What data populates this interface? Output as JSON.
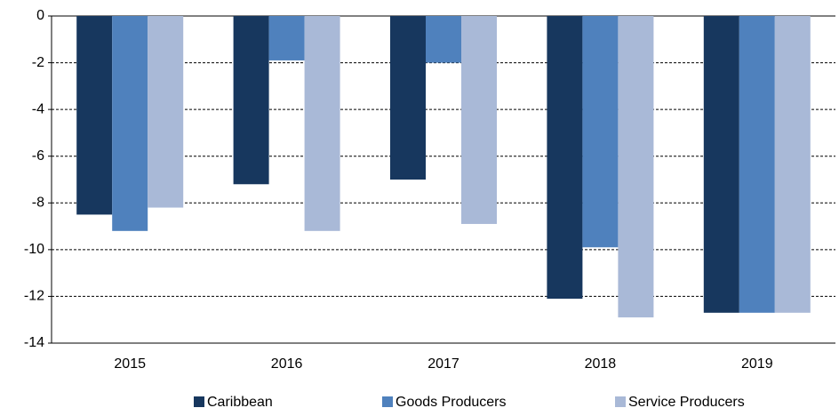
{
  "chart_data": {
    "type": "bar",
    "categories": [
      "2015",
      "2016",
      "2017",
      "2018",
      "2019"
    ],
    "series": [
      {
        "name": "Caribbean",
        "color": "#17375e",
        "values": [
          -8.5,
          -7.2,
          -7.0,
          -12.1,
          -12.7
        ]
      },
      {
        "name": "Goods Producers",
        "color": "#4f81bd",
        "values": [
          -9.2,
          -1.9,
          -2.0,
          -9.9,
          -12.7
        ]
      },
      {
        "name": "Service Producers",
        "color": "#a9b9d7",
        "values": [
          -8.2,
          -9.2,
          -8.9,
          -12.9,
          -12.7
        ]
      }
    ],
    "ylim": [
      -14,
      0
    ],
    "yticks": [
      0,
      -2,
      -4,
      -6,
      -8,
      -10,
      -12,
      -14
    ],
    "grid": true,
    "legend": "bottom"
  }
}
